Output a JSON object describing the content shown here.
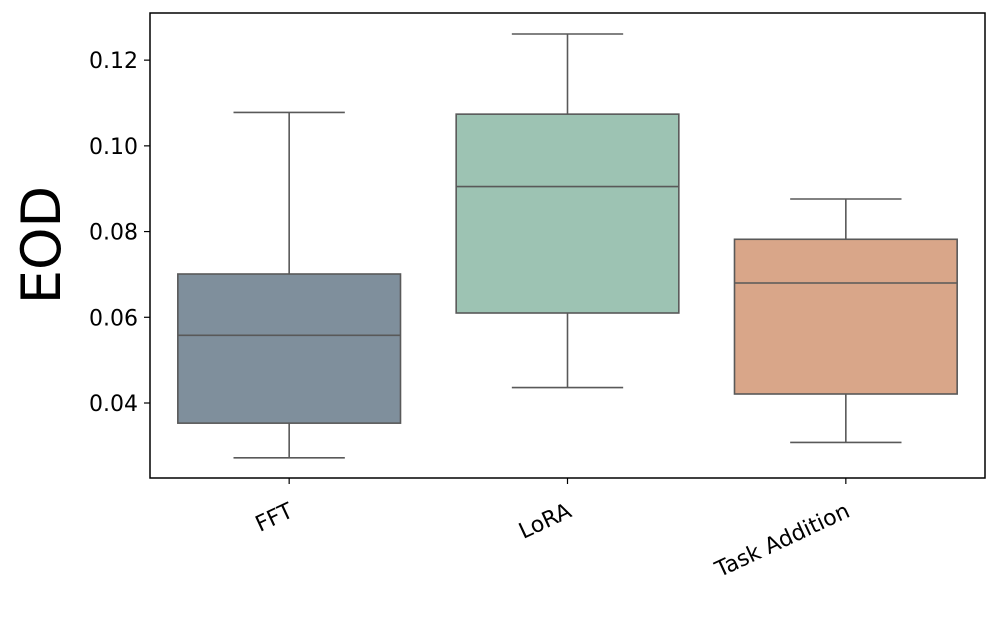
{
  "chart_data": {
    "type": "box",
    "title": "",
    "xlabel": "",
    "ylabel": "EOD",
    "ylim": [
      0.0225,
      0.131
    ],
    "yticks": [
      0.04,
      0.06,
      0.08,
      0.1,
      0.12
    ],
    "ytick_labels": [
      "0.04",
      "0.06",
      "0.08",
      "0.10",
      "0.12"
    ],
    "grid": false,
    "categories": [
      "FFT",
      "LoRA",
      "Task Addition"
    ],
    "series": [
      {
        "name": "FFT",
        "whisker_low": 0.0272,
        "q1": 0.0353,
        "median": 0.0558,
        "q3": 0.0701,
        "whisker_high": 0.1078,
        "color": "#7f8f9c"
      },
      {
        "name": "LoRA",
        "whisker_low": 0.0436,
        "q1": 0.061,
        "median": 0.0905,
        "q3": 0.1074,
        "whisker_high": 0.1261,
        "color": "#9dc3b3"
      },
      {
        "name": "Task Addition",
        "whisker_low": 0.0308,
        "q1": 0.0421,
        "median": 0.068,
        "q3": 0.0782,
        "whisker_high": 0.0876,
        "color": "#d9a689"
      }
    ]
  }
}
